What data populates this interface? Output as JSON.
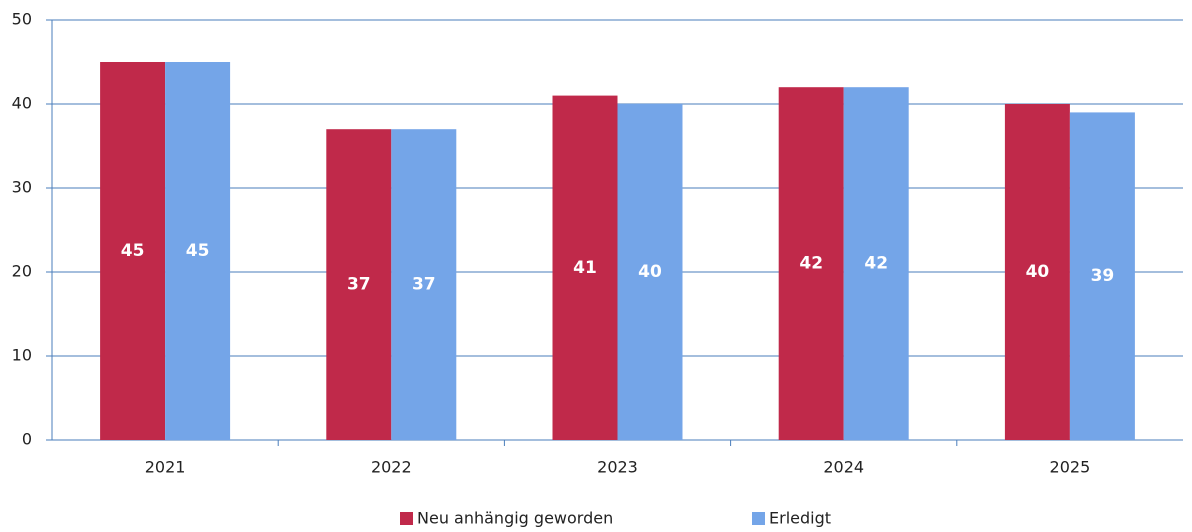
{
  "chart_data": {
    "type": "bar",
    "categories": [
      "2021",
      "2022",
      "2023",
      "2024",
      "2025"
    ],
    "series": [
      {
        "name": "Neu anhängig geworden",
        "color": "#c0294a",
        "values": [
          45,
          37,
          41,
          42,
          40
        ]
      },
      {
        "name": "Erledigt",
        "color": "#74a5e8",
        "values": [
          45,
          37,
          40,
          42,
          39
        ]
      }
    ],
    "ylim": [
      0,
      50
    ],
    "yticks": [
      0,
      10,
      20,
      30,
      40,
      50
    ],
    "grid": true
  }
}
